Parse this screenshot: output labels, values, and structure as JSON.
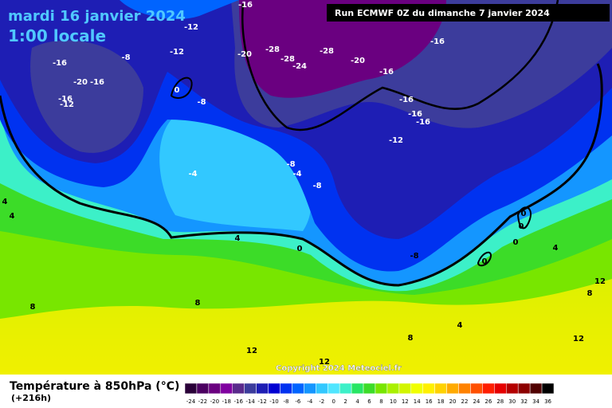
{
  "header": {
    "date": "mardi 16 janvier 2024",
    "time": "1:00 locale",
    "run": "Run ECMWF 0Z du dimanche 7 janvier 2024",
    "copyright": "Copyright 2024 Meteociel.fr"
  },
  "legend": {
    "title": "Température à 850hPa (°C)",
    "lead": "(+216h)",
    "ticks": [
      -24,
      -22,
      -20,
      -18,
      -16,
      -14,
      -12,
      -10,
      -8,
      -6,
      -4,
      -2,
      0,
      2,
      4,
      6,
      8,
      10,
      12,
      14,
      16,
      18,
      20,
      22,
      24,
      26,
      28,
      30,
      32,
      34,
      36
    ],
    "colors": [
      "#2a0038",
      "#4b0060",
      "#6a0080",
      "#8000a0",
      "#5a2a8c",
      "#3c3c9c",
      "#1e1eb4",
      "#0000d2",
      "#0032f0",
      "#0064ff",
      "#1496ff",
      "#32c8ff",
      "#50e6ff",
      "#3cf0c8",
      "#28e664",
      "#3cdc28",
      "#78e600",
      "#aaf000",
      "#d2f500",
      "#f0ff00",
      "#fff000",
      "#ffd200",
      "#ffaa00",
      "#ff8200",
      "#ff5000",
      "#ff1e00",
      "#e60000",
      "#b40000",
      "#8c0000",
      "#500000",
      "#000000"
    ]
  },
  "map_labels": [
    "-16",
    "-12",
    "-8",
    "-12",
    "-16",
    "-20",
    "-16",
    "-16",
    "-12",
    "0",
    "-8",
    "-20",
    "-28",
    "-28",
    "-24",
    "-28",
    "-20",
    "-16",
    "-16",
    "-16",
    "-16",
    "-16",
    "-12",
    "-8",
    "-4",
    "-8",
    "-4",
    "4",
    "4",
    "0",
    "0",
    "0",
    "0",
    "4",
    "0",
    "-8",
    "4",
    "12",
    "8",
    "8",
    "8",
    "4",
    "8",
    "12",
    "12",
    "12"
  ]
}
